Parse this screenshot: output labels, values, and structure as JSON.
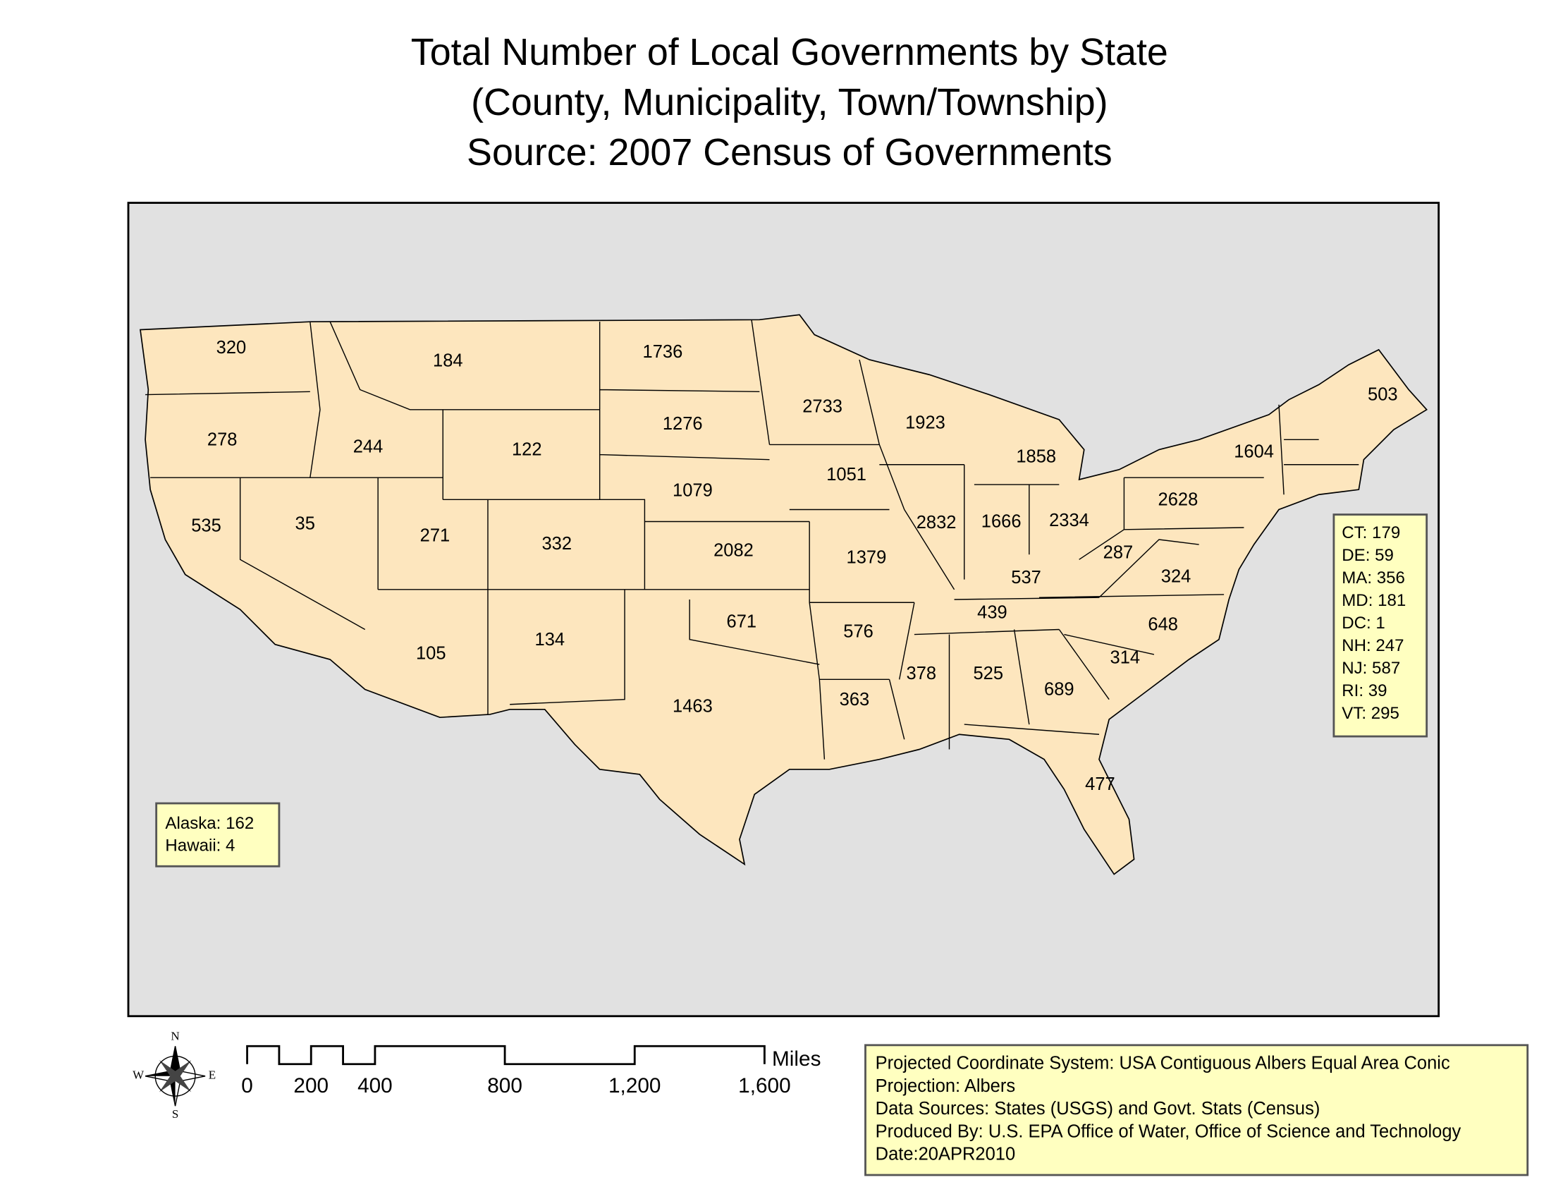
{
  "title": [
    "Total Number of Local Governments by State",
    "(County, Municipality, Town/Township)",
    "Source: 2007 Census of Governments"
  ],
  "state_labels": [
    320,
    184,
    1736,
    278,
    244,
    122,
    1276,
    2733,
    1923,
    503,
    1858,
    1604,
    1051,
    1079,
    2628,
    535,
    35,
    271,
    332,
    2082,
    1379,
    2832,
    1666,
    2334,
    287,
    537,
    324,
    671,
    576,
    439,
    648,
    314,
    105,
    134,
    378,
    525,
    689,
    363,
    1463,
    477
  ],
  "northeast_box": [
    "CT: 179",
    "DE: 59",
    "MA: 356",
    "MD: 181",
    "DC: 1",
    "NH: 247",
    "NJ: 587",
    "RI: 39",
    "VT: 295"
  ],
  "alaska_hawaii_box": [
    "Alaska: 162",
    "Hawaii: 4"
  ],
  "scale_bar": {
    "ticks": [
      "0",
      "200",
      "400",
      "800",
      "1,200",
      "1,600"
    ],
    "unit": "Miles"
  },
  "compass": {
    "north": "N",
    "south": "S",
    "east": "E",
    "west": "W"
  },
  "info_box": [
    "Projected Coordinate System: USA Contiguous Albers Equal Area Conic",
    "Projection: Albers",
    "Data Sources: States (USGS) and Govt. Stats (Census)",
    "Produced By: U.S. EPA Office of Water, Office of Science and Technology",
    "Date:20APR2010"
  ]
}
